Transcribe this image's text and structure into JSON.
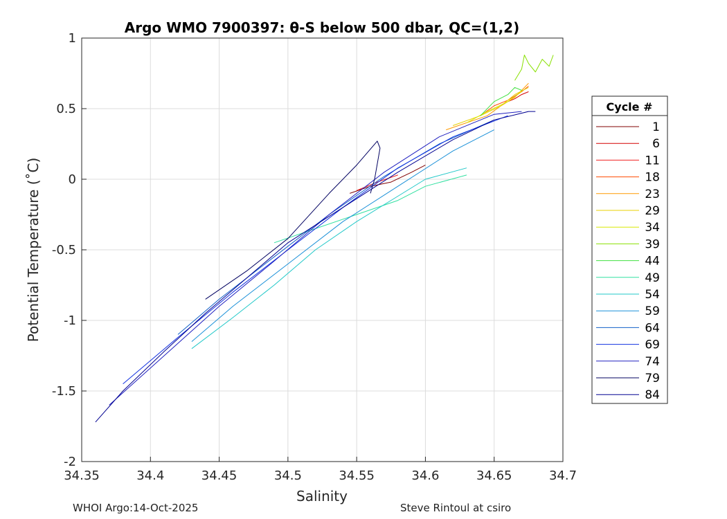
{
  "chart_data": {
    "type": "line",
    "title": "Argo WMO 7900397: θ-S below 500 dbar,  QC=(1,2)",
    "xlabel": "Salinity",
    "ylabel": "Potential Temperature (˚C)",
    "xlim": [
      34.35,
      34.7
    ],
    "ylim": [
      -2,
      1
    ],
    "xticks": [
      "34.35",
      "34.4",
      "34.45",
      "34.5",
      "34.55",
      "34.6",
      "34.65",
      "34.7"
    ],
    "yticks": [
      "-2",
      "-1.5",
      "-1",
      "-0.5",
      "0",
      "0.5",
      "1"
    ],
    "grid": true,
    "legend_title": "Cycle #",
    "legend_position": "right, outside",
    "series": [
      {
        "name": "1",
        "color": "#800000",
        "points": [
          [
            34.545,
            -0.1
          ],
          [
            34.56,
            -0.05
          ],
          [
            34.575,
            -0.02
          ],
          [
            34.59,
            0.05
          ],
          [
            34.6,
            0.1
          ]
        ]
      },
      {
        "name": "6",
        "color": "#d40000",
        "points": [
          [
            34.66,
            0.55
          ],
          [
            34.665,
            0.57
          ],
          [
            34.67,
            0.6
          ],
          [
            34.675,
            0.62
          ]
        ]
      },
      {
        "name": "11",
        "color": "#f02020",
        "points": [
          [
            34.55,
            -0.08
          ],
          [
            34.565,
            -0.02
          ],
          [
            34.58,
            0.03
          ]
        ]
      },
      {
        "name": "18",
        "color": "#ff4a00",
        "points": [
          [
            34.64,
            0.45
          ],
          [
            34.65,
            0.52
          ],
          [
            34.66,
            0.56
          ],
          [
            34.67,
            0.62
          ],
          [
            34.675,
            0.66
          ]
        ]
      },
      {
        "name": "23",
        "color": "#ff9a00",
        "points": [
          [
            34.615,
            0.35
          ],
          [
            34.63,
            0.4
          ],
          [
            34.645,
            0.45
          ],
          [
            34.655,
            0.52
          ],
          [
            34.665,
            0.58
          ],
          [
            34.675,
            0.68
          ]
        ]
      },
      {
        "name": "29",
        "color": "#e8d000",
        "points": [
          [
            34.62,
            0.38
          ],
          [
            34.64,
            0.45
          ],
          [
            34.655,
            0.52
          ],
          [
            34.665,
            0.6
          ],
          [
            34.675,
            0.65
          ]
        ]
      },
      {
        "name": "34",
        "color": "#d8e800",
        "points": [
          [
            34.63,
            0.4
          ],
          [
            34.645,
            0.48
          ],
          [
            34.66,
            0.55
          ],
          [
            34.67,
            0.62
          ]
        ]
      },
      {
        "name": "39",
        "color": "#88e000",
        "points": [
          [
            34.665,
            0.7
          ],
          [
            34.67,
            0.78
          ],
          [
            34.672,
            0.88
          ],
          [
            34.675,
            0.82
          ],
          [
            34.68,
            0.76
          ],
          [
            34.685,
            0.85
          ],
          [
            34.69,
            0.8
          ],
          [
            34.693,
            0.88
          ]
        ]
      },
      {
        "name": "44",
        "color": "#40e040",
        "points": [
          [
            34.64,
            0.45
          ],
          [
            34.65,
            0.55
          ],
          [
            34.66,
            0.6
          ],
          [
            34.665,
            0.65
          ],
          [
            34.67,
            0.63
          ]
        ]
      },
      {
        "name": "49",
        "color": "#30e0a0",
        "points": [
          [
            34.49,
            -0.45
          ],
          [
            34.52,
            -0.35
          ],
          [
            34.55,
            -0.25
          ],
          [
            34.58,
            -0.15
          ],
          [
            34.6,
            -0.05
          ],
          [
            34.63,
            0.03
          ]
        ]
      },
      {
        "name": "54",
        "color": "#20c8c8",
        "points": [
          [
            34.43,
            -1.2
          ],
          [
            34.46,
            -0.98
          ],
          [
            34.49,
            -0.75
          ],
          [
            34.52,
            -0.5
          ],
          [
            34.55,
            -0.3
          ],
          [
            34.58,
            -0.12
          ],
          [
            34.6,
            0.0
          ],
          [
            34.63,
            0.08
          ]
        ]
      },
      {
        "name": "59",
        "color": "#1a90d8",
        "points": [
          [
            34.43,
            -1.15
          ],
          [
            34.46,
            -0.9
          ],
          [
            34.5,
            -0.6
          ],
          [
            34.54,
            -0.3
          ],
          [
            34.58,
            -0.05
          ],
          [
            34.62,
            0.2
          ],
          [
            34.65,
            0.35
          ]
        ]
      },
      {
        "name": "64",
        "color": "#1060c8",
        "points": [
          [
            34.42,
            -1.1
          ],
          [
            34.45,
            -0.85
          ],
          [
            34.49,
            -0.55
          ],
          [
            34.53,
            -0.25
          ],
          [
            34.57,
            0.02
          ],
          [
            34.61,
            0.25
          ],
          [
            34.65,
            0.42
          ]
        ]
      },
      {
        "name": "69",
        "color": "#1030e0",
        "points": [
          [
            34.38,
            -1.45
          ],
          [
            34.42,
            -1.12
          ],
          [
            34.46,
            -0.8
          ],
          [
            34.5,
            -0.5
          ],
          [
            34.54,
            -0.2
          ],
          [
            34.58,
            0.08
          ],
          [
            34.62,
            0.3
          ],
          [
            34.66,
            0.45
          ]
        ]
      },
      {
        "name": "74",
        "color": "#2020c0",
        "points": [
          [
            34.37,
            -1.6
          ],
          [
            34.41,
            -1.25
          ],
          [
            34.45,
            -0.9
          ],
          [
            34.49,
            -0.58
          ],
          [
            34.53,
            -0.25
          ],
          [
            34.57,
            0.05
          ],
          [
            34.61,
            0.3
          ],
          [
            34.65,
            0.46
          ],
          [
            34.67,
            0.48
          ]
        ]
      },
      {
        "name": "79",
        "color": "#000060",
        "points": [
          [
            34.44,
            -0.85
          ],
          [
            34.47,
            -0.65
          ],
          [
            34.5,
            -0.42
          ],
          [
            34.53,
            -0.1
          ],
          [
            34.55,
            0.1
          ],
          [
            34.565,
            0.27
          ],
          [
            34.567,
            0.22
          ],
          [
            34.563,
            0.0
          ],
          [
            34.56,
            -0.1
          ]
        ]
      },
      {
        "name": "84",
        "color": "#000090",
        "points": [
          [
            34.36,
            -1.72
          ],
          [
            34.38,
            -1.5
          ],
          [
            34.41,
            -1.22
          ],
          [
            34.44,
            -0.95
          ],
          [
            34.47,
            -0.7
          ],
          [
            34.5,
            -0.45
          ],
          [
            34.54,
            -0.2
          ],
          [
            34.58,
            0.05
          ],
          [
            34.62,
            0.28
          ],
          [
            34.65,
            0.42
          ],
          [
            34.675,
            0.48
          ],
          [
            34.68,
            0.48
          ]
        ]
      }
    ]
  },
  "footer": {
    "left": "WHOI Argo:14-Oct-2025",
    "right": "Steve Rintoul at csiro"
  }
}
